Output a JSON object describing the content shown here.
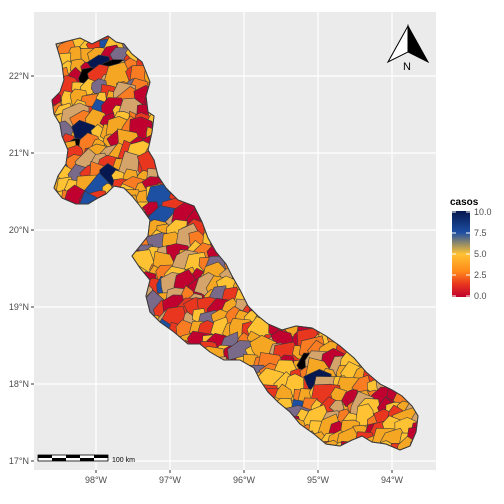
{
  "map": {
    "x_axis": {
      "ticks": [
        "98°W",
        "97°W",
        "96°W",
        "95°W",
        "94°W"
      ]
    },
    "y_axis": {
      "ticks": [
        "22°N",
        "21°N",
        "20°N",
        "19°N",
        "18°N",
        "17°N"
      ]
    },
    "legend": {
      "title": "casos",
      "ticks": [
        "10.0",
        "7.5",
        "5.0",
        "2.5",
        "0.0"
      ],
      "gradient_colors": [
        "#06184f",
        "#1d4fa3",
        "#ffc233",
        "#ff8a1a",
        "#e8361f",
        "#c0002e"
      ]
    },
    "scale_bar": {
      "label": "100 km"
    },
    "north_arrow": {
      "label": "N"
    },
    "colors": {
      "panel_background": "#ebebeb",
      "gridline": "#ffffff",
      "border": "#3a3a3a",
      "fill_palette": [
        "#ffc233",
        "#f5a623",
        "#f97b22",
        "#e8361f",
        "#c0002e",
        "#d4a46a",
        "#7a6a8a",
        "#1d4fa3",
        "#06184f",
        "#000000"
      ]
    }
  }
}
